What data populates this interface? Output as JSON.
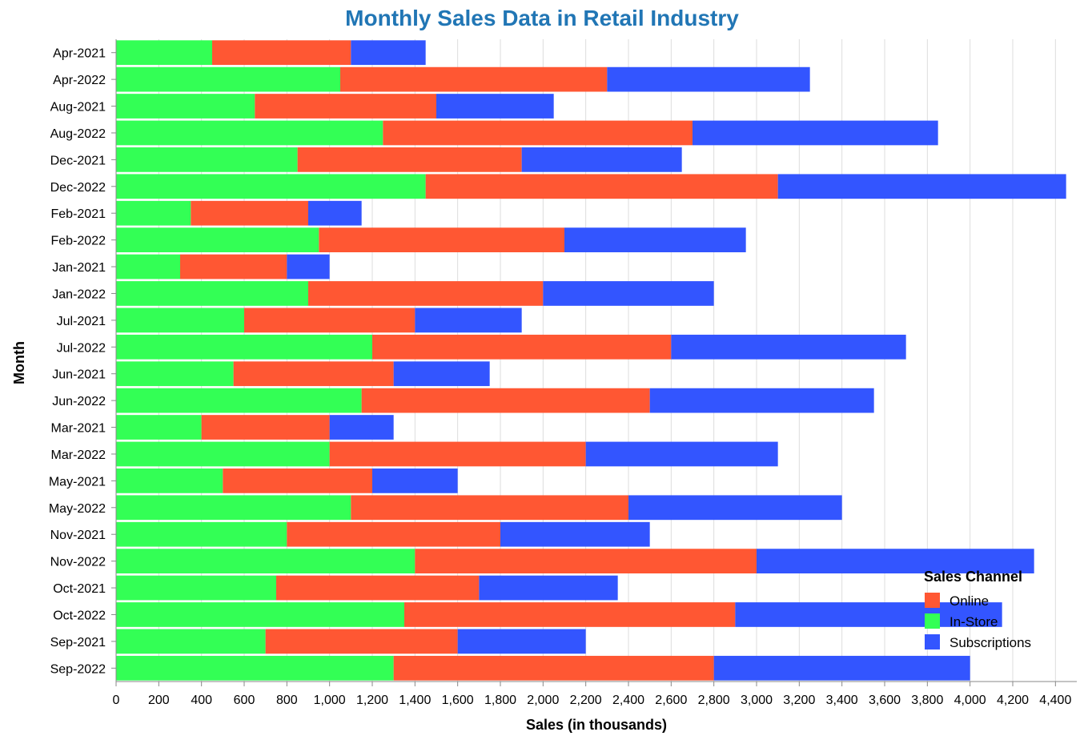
{
  "chart_data": {
    "type": "bar",
    "orientation": "horizontal",
    "stacked": true,
    "title": "Monthly Sales Data in Retail Industry",
    "xlabel": "Sales (in thousands)",
    "ylabel": "Month",
    "xlim": [
      0,
      4500
    ],
    "x_ticks": [
      "0",
      "200",
      "400",
      "600",
      "800",
      "1,000",
      "1,200",
      "1,400",
      "1,600",
      "1,800",
      "2,000",
      "2,200",
      "2,400",
      "2,600",
      "2,800",
      "3,000",
      "3,200",
      "3,400",
      "3,600",
      "3,800",
      "4,000",
      "4,200",
      "4,400"
    ],
    "grid": true,
    "legend": {
      "title": "Sales Channel",
      "position": "bottom-right",
      "entries": [
        "Online",
        "In-Store",
        "Subscriptions"
      ]
    },
    "categories": [
      "Apr-2021",
      "Apr-2022",
      "Aug-2021",
      "Aug-2022",
      "Dec-2021",
      "Dec-2022",
      "Feb-2021",
      "Feb-2022",
      "Jan-2021",
      "Jan-2022",
      "Jul-2021",
      "Jul-2022",
      "Jun-2021",
      "Jun-2022",
      "Mar-2021",
      "Mar-2022",
      "May-2021",
      "May-2022",
      "Nov-2021",
      "Nov-2022",
      "Oct-2021",
      "Oct-2022",
      "Sep-2021",
      "Sep-2022"
    ],
    "series": [
      {
        "name": "In-Store",
        "color": "#33ff55",
        "values": [
          450,
          1050,
          650,
          1250,
          850,
          1450,
          350,
          950,
          300,
          900,
          600,
          1200,
          550,
          1150,
          400,
          1000,
          500,
          1100,
          800,
          1400,
          750,
          1350,
          700,
          1300
        ]
      },
      {
        "name": "Online",
        "color": "#ff5733",
        "values": [
          650,
          1250,
          850,
          1450,
          1050,
          1650,
          550,
          1150,
          500,
          1100,
          800,
          1400,
          750,
          1350,
          600,
          1200,
          700,
          1300,
          1000,
          1600,
          950,
          1550,
          900,
          1500
        ]
      },
      {
        "name": "Subscriptions",
        "color": "#3355ff",
        "values": [
          350,
          950,
          550,
          1150,
          750,
          1350,
          250,
          850,
          200,
          800,
          500,
          1100,
          450,
          1050,
          300,
          900,
          400,
          1000,
          700,
          1300,
          650,
          1250,
          600,
          1200
        ]
      }
    ]
  }
}
